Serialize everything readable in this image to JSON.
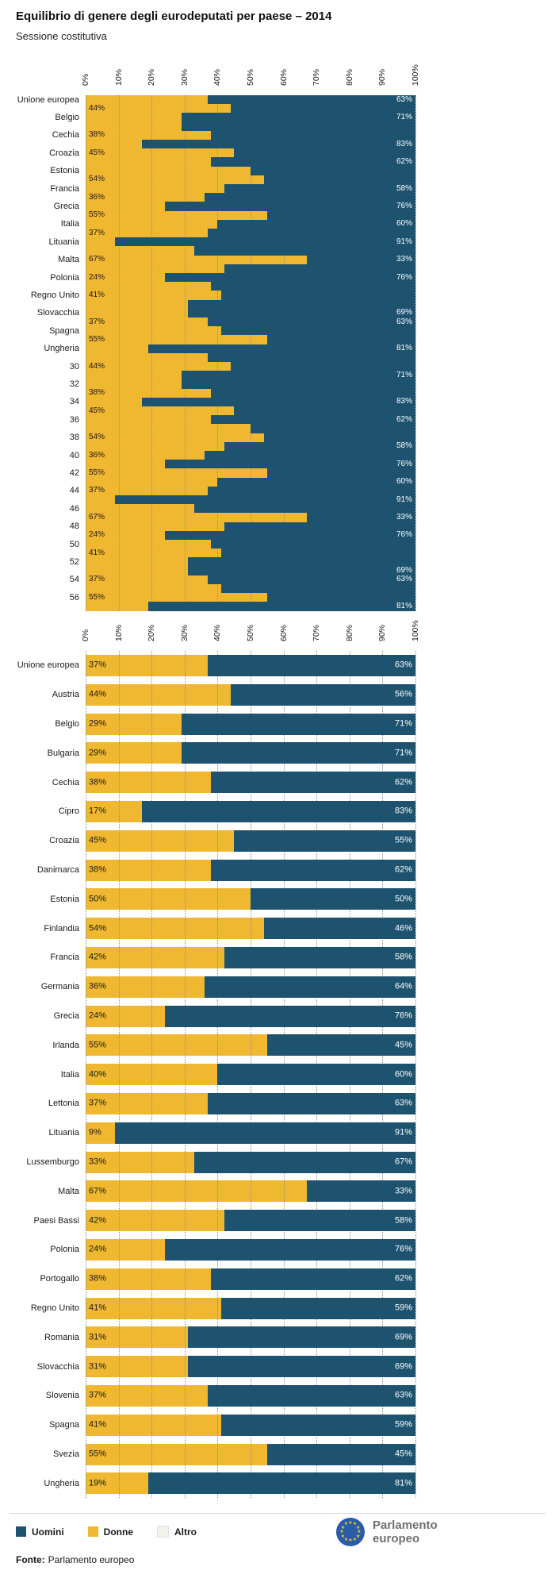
{
  "header": {
    "title": "Equilibrio di genere degli eurodeputati per paese – 2014",
    "subtitle": "Sessione costitutiva"
  },
  "colors": {
    "uomini": "#1D536F",
    "donne": "#F0B731",
    "altro": "#F2F2EA",
    "grid": "#8F8F8F",
    "eu_blue": "#2A5CA8",
    "eu_star": "#F7D117"
  },
  "chart_data": {
    "type": "bar",
    "subtype": "horizontal-stacked",
    "title": "Equilibrio di genere degli eurodeputati per paese – 2014",
    "subtitle": "Sessione costitutiva",
    "x_axis": {
      "min": 0,
      "max": 100,
      "ticks": [
        "0%",
        "10%",
        "20%",
        "30%",
        "40%",
        "50%",
        "60%",
        "70%",
        "80%",
        "90%",
        "100%"
      ],
      "grid": "dotted"
    },
    "legend": {
      "position": "bottom",
      "entries": [
        "Uomini",
        "Donne",
        "Altro"
      ]
    },
    "categories": [
      "Unione europea",
      "Austria",
      "Belgio",
      "Bulgaria",
      "Cechia",
      "Cipro",
      "Croazia",
      "Danimarca",
      "Estonia",
      "Finlandia",
      "Francia",
      "Germania",
      "Grecia",
      "Irlanda",
      "Italia",
      "Lettonia",
      "Lituania",
      "Lussemburgo",
      "Malta",
      "Paesi Bassi",
      "Polonia",
      "Portogallo",
      "Regno Unito",
      "Romania",
      "Slovacchia",
      "Slovenia",
      "Spagna",
      "Svezia",
      "Ungheria"
    ],
    "series": [
      {
        "name": "Donne",
        "color": "#F0B731",
        "values": [
          37,
          44,
          29,
          29,
          38,
          17,
          45,
          38,
          50,
          54,
          42,
          36,
          24,
          55,
          40,
          37,
          9,
          33,
          67,
          42,
          24,
          38,
          41,
          31,
          31,
          37,
          41,
          55,
          19
        ]
      },
      {
        "name": "Uomini",
        "color": "#1D536F",
        "values": [
          63,
          56,
          71,
          71,
          62,
          83,
          55,
          62,
          50,
          46,
          58,
          64,
          76,
          45,
          60,
          63,
          91,
          67,
          33,
          58,
          76,
          62,
          59,
          69,
          69,
          63,
          59,
          45,
          81
        ]
      }
    ]
  },
  "top_chart": {
    "axis_labels": [
      "Unione europea",
      "Belgio",
      "Cechia",
      "Croazia",
      "Estonia",
      "Francia",
      "Grecia",
      "Italia",
      "Lituania",
      "Malta",
      "Polonia",
      "Regno Unito",
      "Slovacchia",
      "Spagna",
      "Ungheria",
      "30",
      "32",
      "34",
      "36",
      "38",
      "40",
      "42",
      "44",
      "46",
      "48",
      "50",
      "52",
      "54",
      "56"
    ],
    "left_value_label_rows": [
      1,
      4,
      6,
      9,
      11,
      13,
      15,
      18,
      20,
      22,
      25,
      27
    ],
    "right_value_label_rows_pass1": [
      0,
      2,
      5,
      7,
      10,
      12,
      14,
      16,
      18,
      20,
      24,
      25,
      28
    ],
    "right_value_label_rows_pass2": [
      2,
      5,
      7,
      10,
      12,
      14,
      16,
      18,
      20,
      24,
      25,
      28
    ]
  },
  "legend": [
    {
      "label": "Uomini",
      "color_key": "uomini"
    },
    {
      "label": "Donne",
      "color_key": "donne"
    },
    {
      "label": "Altro",
      "color_key": "altro"
    }
  ],
  "logo": {
    "line1": "Parlamento",
    "line2": "europeo"
  },
  "source": {
    "label": "Fonte:",
    "text": "Parlamento europeo"
  }
}
